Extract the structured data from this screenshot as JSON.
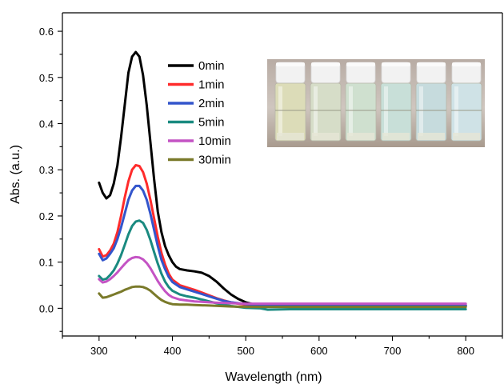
{
  "chart_data": {
    "type": "line",
    "xlabel": "Wavelength (nm)",
    "ylabel": "Abs. (a.u.)",
    "xlim": [
      250,
      850
    ],
    "ylim": [
      -0.06,
      0.64
    ],
    "x_ticks": [
      300,
      400,
      500,
      600,
      700,
      800
    ],
    "y_ticks": [
      0.0,
      0.1,
      0.2,
      0.3,
      0.4,
      0.5,
      0.6
    ],
    "grid": false,
    "legend_position": "top-center",
    "inset_photo": "vials-photo",
    "series": [
      {
        "name": "0min",
        "color": "#000000",
        "points": [
          [
            300,
            0.272
          ],
          [
            305,
            0.25
          ],
          [
            310,
            0.238
          ],
          [
            315,
            0.245
          ],
          [
            320,
            0.27
          ],
          [
            325,
            0.31
          ],
          [
            330,
            0.37
          ],
          [
            335,
            0.44
          ],
          [
            340,
            0.51
          ],
          [
            345,
            0.545
          ],
          [
            350,
            0.555
          ],
          [
            355,
            0.545
          ],
          [
            360,
            0.505
          ],
          [
            365,
            0.44
          ],
          [
            370,
            0.36
          ],
          [
            375,
            0.28
          ],
          [
            380,
            0.21
          ],
          [
            385,
            0.165
          ],
          [
            390,
            0.135
          ],
          [
            395,
            0.115
          ],
          [
            400,
            0.1
          ],
          [
            405,
            0.09
          ],
          [
            410,
            0.085
          ],
          [
            420,
            0.082
          ],
          [
            430,
            0.08
          ],
          [
            440,
            0.077
          ],
          [
            450,
            0.07
          ],
          [
            460,
            0.058
          ],
          [
            470,
            0.043
          ],
          [
            480,
            0.03
          ],
          [
            490,
            0.02
          ],
          [
            500,
            0.013
          ],
          [
            510,
            0.009
          ],
          [
            520,
            0.007
          ],
          [
            550,
            0.006
          ],
          [
            600,
            0.006
          ],
          [
            650,
            0.006
          ],
          [
            700,
            0.006
          ],
          [
            750,
            0.006
          ],
          [
            800,
            0.006
          ]
        ]
      },
      {
        "name": "1min",
        "color": "#ff2b2b",
        "points": [
          [
            300,
            0.128
          ],
          [
            305,
            0.112
          ],
          [
            310,
            0.115
          ],
          [
            315,
            0.125
          ],
          [
            320,
            0.14
          ],
          [
            325,
            0.165
          ],
          [
            330,
            0.2
          ],
          [
            335,
            0.24
          ],
          [
            340,
            0.275
          ],
          [
            345,
            0.3
          ],
          [
            350,
            0.31
          ],
          [
            355,
            0.308
          ],
          [
            360,
            0.295
          ],
          [
            365,
            0.27
          ],
          [
            370,
            0.235
          ],
          [
            375,
            0.195
          ],
          [
            380,
            0.155
          ],
          [
            385,
            0.12
          ],
          [
            390,
            0.095
          ],
          [
            395,
            0.075
          ],
          [
            400,
            0.062
          ],
          [
            410,
            0.05
          ],
          [
            420,
            0.045
          ],
          [
            430,
            0.04
          ],
          [
            440,
            0.034
          ],
          [
            450,
            0.028
          ],
          [
            460,
            0.022
          ],
          [
            470,
            0.017
          ],
          [
            480,
            0.013
          ],
          [
            490,
            0.01
          ],
          [
            500,
            0.008
          ],
          [
            530,
            0.005
          ],
          [
            560,
            0.005
          ],
          [
            600,
            0.005
          ],
          [
            650,
            0.005
          ],
          [
            700,
            0.005
          ],
          [
            750,
            0.005
          ],
          [
            800,
            0.005
          ]
        ]
      },
      {
        "name": "2min",
        "color": "#3355cc",
        "points": [
          [
            300,
            0.118
          ],
          [
            305,
            0.104
          ],
          [
            310,
            0.108
          ],
          [
            315,
            0.118
          ],
          [
            320,
            0.13
          ],
          [
            325,
            0.15
          ],
          [
            330,
            0.175
          ],
          [
            335,
            0.205
          ],
          [
            340,
            0.235
          ],
          [
            345,
            0.255
          ],
          [
            350,
            0.265
          ],
          [
            355,
            0.265
          ],
          [
            360,
            0.255
          ],
          [
            365,
            0.235
          ],
          [
            370,
            0.205
          ],
          [
            375,
            0.17
          ],
          [
            380,
            0.135
          ],
          [
            385,
            0.105
          ],
          [
            390,
            0.085
          ],
          [
            395,
            0.068
          ],
          [
            400,
            0.057
          ],
          [
            410,
            0.046
          ],
          [
            420,
            0.041
          ],
          [
            430,
            0.036
          ],
          [
            440,
            0.031
          ],
          [
            450,
            0.026
          ],
          [
            460,
            0.021
          ],
          [
            470,
            0.016
          ],
          [
            480,
            0.013
          ],
          [
            490,
            0.011
          ],
          [
            500,
            0.009
          ],
          [
            530,
            0.007
          ],
          [
            560,
            0.006
          ],
          [
            600,
            0.006
          ],
          [
            650,
            0.006
          ],
          [
            700,
            0.006
          ],
          [
            750,
            0.006
          ],
          [
            800,
            0.006
          ]
        ]
      },
      {
        "name": "5min",
        "color": "#1a8a80",
        "points": [
          [
            300,
            0.07
          ],
          [
            305,
            0.062
          ],
          [
            310,
            0.064
          ],
          [
            315,
            0.072
          ],
          [
            320,
            0.082
          ],
          [
            325,
            0.097
          ],
          [
            330,
            0.115
          ],
          [
            335,
            0.137
          ],
          [
            340,
            0.16
          ],
          [
            345,
            0.178
          ],
          [
            350,
            0.188
          ],
          [
            355,
            0.19
          ],
          [
            360,
            0.185
          ],
          [
            365,
            0.17
          ],
          [
            370,
            0.148
          ],
          [
            375,
            0.122
          ],
          [
            380,
            0.097
          ],
          [
            385,
            0.075
          ],
          [
            390,
            0.058
          ],
          [
            395,
            0.046
          ],
          [
            400,
            0.038
          ],
          [
            410,
            0.03
          ],
          [
            420,
            0.026
          ],
          [
            430,
            0.023
          ],
          [
            440,
            0.019
          ],
          [
            450,
            0.015
          ],
          [
            460,
            0.011
          ],
          [
            470,
            0.008
          ],
          [
            480,
            0.005
          ],
          [
            490,
            0.003
          ],
          [
            500,
            0.001
          ],
          [
            520,
            0.0
          ],
          [
            530,
            -0.003
          ],
          [
            560,
            -0.002
          ],
          [
            600,
            -0.002
          ],
          [
            650,
            -0.002
          ],
          [
            700,
            -0.002
          ],
          [
            750,
            -0.002
          ],
          [
            800,
            -0.002
          ]
        ]
      },
      {
        "name": "10min",
        "color": "#c453c4",
        "points": [
          [
            300,
            0.063
          ],
          [
            305,
            0.056
          ],
          [
            310,
            0.058
          ],
          [
            315,
            0.063
          ],
          [
            320,
            0.07
          ],
          [
            325,
            0.078
          ],
          [
            330,
            0.087
          ],
          [
            335,
            0.096
          ],
          [
            340,
            0.104
          ],
          [
            345,
            0.109
          ],
          [
            350,
            0.111
          ],
          [
            355,
            0.11
          ],
          [
            360,
            0.106
          ],
          [
            365,
            0.098
          ],
          [
            370,
            0.087
          ],
          [
            375,
            0.073
          ],
          [
            380,
            0.059
          ],
          [
            385,
            0.047
          ],
          [
            390,
            0.037
          ],
          [
            395,
            0.029
          ],
          [
            400,
            0.024
          ],
          [
            410,
            0.019
          ],
          [
            420,
            0.017
          ],
          [
            430,
            0.015
          ],
          [
            440,
            0.014
          ],
          [
            450,
            0.013
          ],
          [
            460,
            0.012
          ],
          [
            480,
            0.011
          ],
          [
            500,
            0.01
          ],
          [
            550,
            0.01
          ],
          [
            600,
            0.01
          ],
          [
            650,
            0.01
          ],
          [
            700,
            0.01
          ],
          [
            750,
            0.01
          ],
          [
            800,
            0.01
          ]
        ]
      },
      {
        "name": "30min",
        "color": "#7a7a2a",
        "points": [
          [
            300,
            0.032
          ],
          [
            305,
            0.023
          ],
          [
            310,
            0.024
          ],
          [
            315,
            0.027
          ],
          [
            320,
            0.03
          ],
          [
            325,
            0.033
          ],
          [
            330,
            0.036
          ],
          [
            335,
            0.04
          ],
          [
            340,
            0.043
          ],
          [
            345,
            0.046
          ],
          [
            350,
            0.047
          ],
          [
            355,
            0.047
          ],
          [
            360,
            0.046
          ],
          [
            365,
            0.043
          ],
          [
            370,
            0.038
          ],
          [
            375,
            0.031
          ],
          [
            380,
            0.024
          ],
          [
            385,
            0.018
          ],
          [
            390,
            0.014
          ],
          [
            395,
            0.011
          ],
          [
            400,
            0.009
          ],
          [
            410,
            0.008
          ],
          [
            420,
            0.008
          ],
          [
            430,
            0.007
          ],
          [
            450,
            0.006
          ],
          [
            480,
            0.004
          ],
          [
            500,
            0.003
          ],
          [
            550,
            0.003
          ],
          [
            600,
            0.003
          ],
          [
            650,
            0.003
          ],
          [
            700,
            0.003
          ],
          [
            750,
            0.003
          ],
          [
            800,
            0.003
          ]
        ]
      }
    ]
  }
}
